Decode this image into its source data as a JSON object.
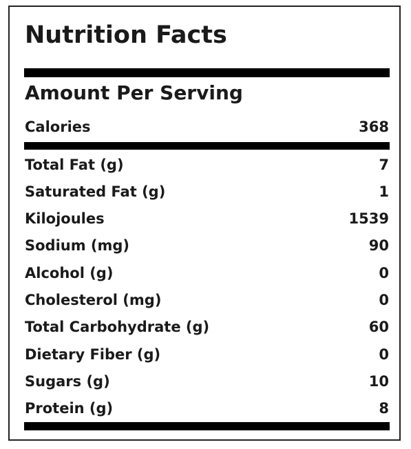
{
  "label": {
    "title": "Nutrition Facts",
    "subtitle": "Amount Per Serving",
    "calories": {
      "name": "Calories",
      "value": "368"
    },
    "nutrients": [
      {
        "name": "Total Fat (g)",
        "value": "7"
      },
      {
        "name": "Saturated Fat (g)",
        "value": "1"
      },
      {
        "name": "Kilojoules",
        "value": "1539"
      },
      {
        "name": "Sodium (mg)",
        "value": "90"
      },
      {
        "name": "Alcohol (g)",
        "value": "0"
      },
      {
        "name": "Cholesterol (mg)",
        "value": "0"
      },
      {
        "name": "Total Carbohydrate (g)",
        "value": "60"
      },
      {
        "name": "Dietary Fiber (g)",
        "value": "0"
      },
      {
        "name": "Sugars (g)",
        "value": "10"
      },
      {
        "name": "Protein (g)",
        "value": "8"
      }
    ]
  }
}
